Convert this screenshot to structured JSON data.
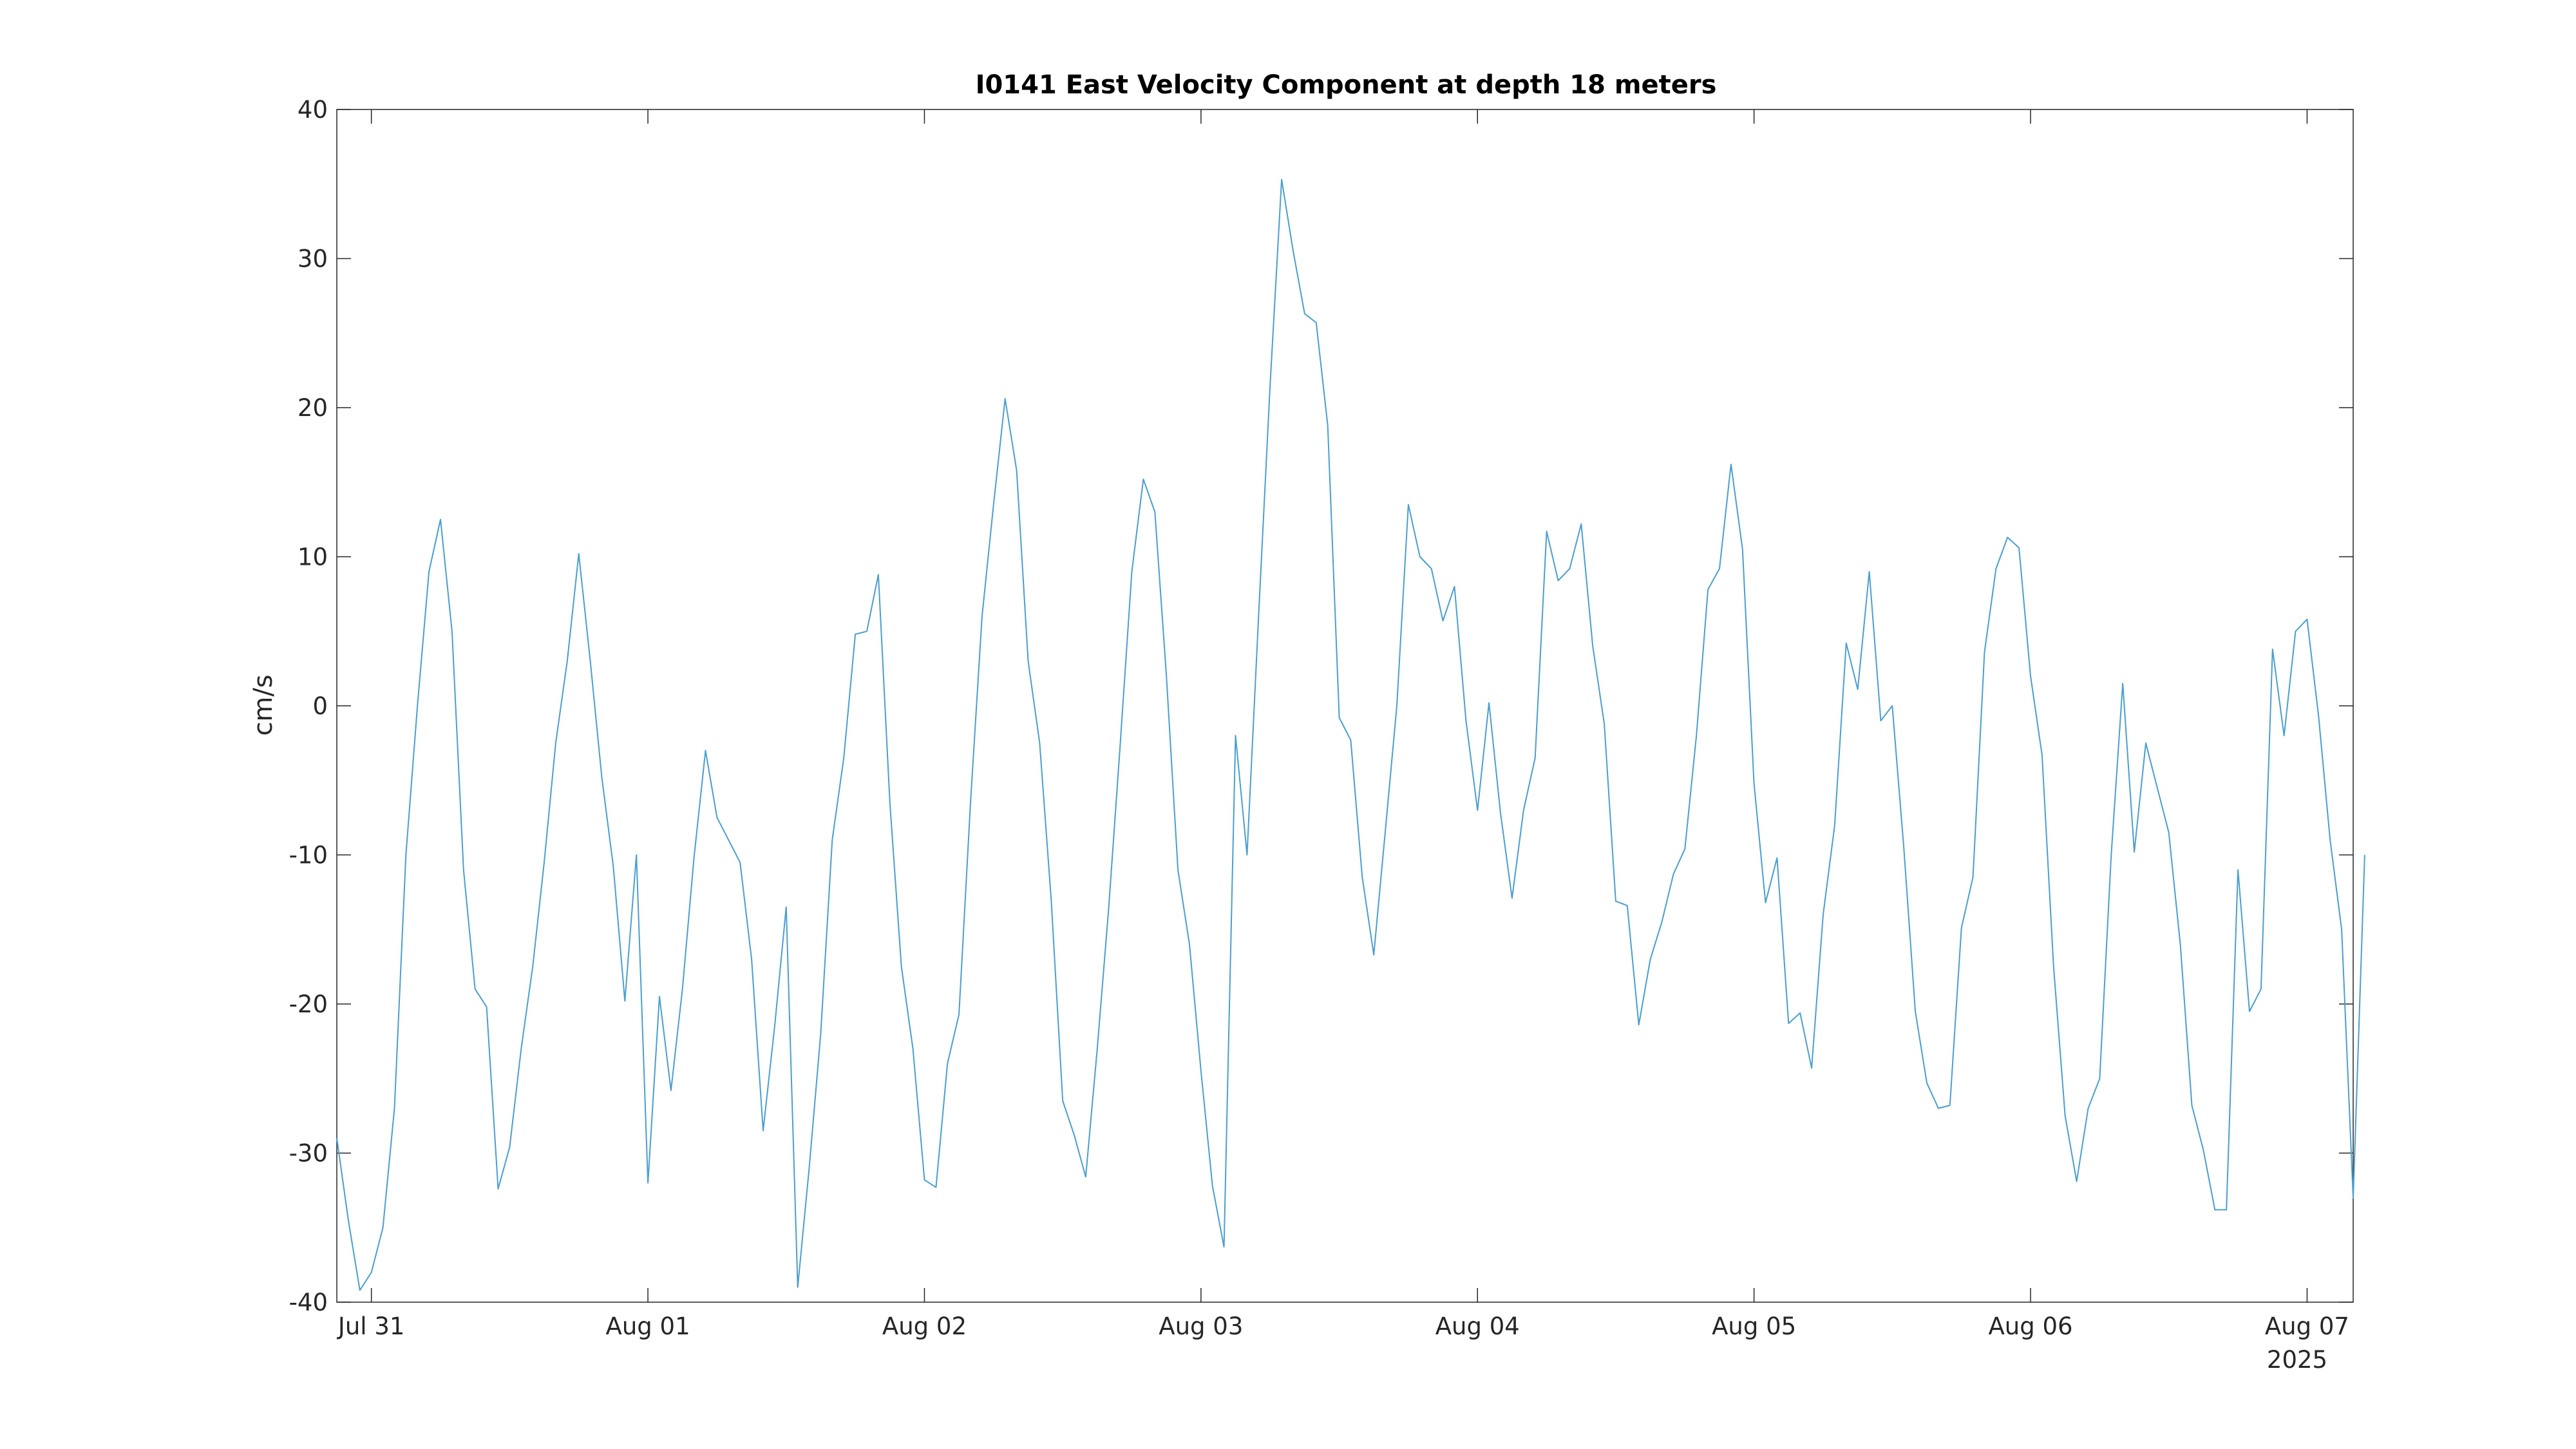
{
  "chart_data": {
    "type": "line",
    "title": "I0141 East Velocity Component at depth 18 meters",
    "xlabel": "",
    "ylabel": "cm/s",
    "ylim": [
      -40,
      40
    ],
    "xlim": [
      "2025-07-30 21:00",
      "2025-08-07 04:00"
    ],
    "yticks": [
      40,
      30,
      20,
      10,
      0,
      -10,
      -20,
      -30,
      -40
    ],
    "ytick_labels": [
      "40",
      "30",
      "20",
      "10",
      "0",
      "-10",
      "-20",
      "-30",
      "-40"
    ],
    "xticks": [
      "2025-07-31 00:00",
      "2025-08-01 00:00",
      "2025-08-02 00:00",
      "2025-08-03 00:00",
      "2025-08-04 00:00",
      "2025-08-05 00:00",
      "2025-08-06 00:00",
      "2025-08-07 00:00"
    ],
    "xtick_labels": [
      "Jul 31",
      "Aug 01",
      "Aug 02",
      "Aug 03",
      "Aug 04",
      "Aug 05",
      "Aug 06",
      "Aug 07"
    ],
    "x_secondary_label": "2025",
    "grid": false,
    "line_color": "#4a9fd0",
    "series": [
      {
        "x_start": "2025-07-30 21:00",
        "x_step_hours": 1,
        "values": [
          -29,
          -34.5,
          -39.2,
          -38,
          -35,
          -27,
          -10,
          0,
          9,
          12.5,
          5,
          -11,
          -19,
          -20.2,
          -32.4,
          -29.6,
          -23,
          -17.5,
          -10.5,
          -2.5,
          3,
          10.2,
          3,
          -4.8,
          -10.8,
          -19.8,
          -10,
          -32,
          -19.5,
          -25.8,
          -19,
          -10.2,
          -3,
          -7.5,
          -9,
          -10.5,
          -17,
          -28.5,
          -21.5,
          -13.5,
          -39,
          -31,
          -22,
          -9,
          -3.5,
          4.8,
          5,
          8.8,
          -6.5,
          -17.5,
          -23,
          -31.8,
          -32.3,
          -24,
          -20.7,
          -6.5,
          6,
          13.5,
          20.6,
          15.8,
          3,
          -2.5,
          -13,
          -26.5,
          -28.8,
          -31.6,
          -23,
          -13.5,
          -2.5,
          9,
          15.2,
          13,
          2,
          -11,
          -16,
          -24.5,
          -32.2,
          -36.3,
          -2,
          -10,
          6,
          21.5,
          35.3,
          30.5,
          26.3,
          25.7,
          18.8,
          -0.8,
          -2.3,
          -11.5,
          -16.7,
          -8.4,
          0,
          13.5,
          10,
          9.2,
          5.7,
          8,
          -1,
          -7,
          0.2,
          -7.2,
          -12.9,
          -7,
          -3.5,
          11.7,
          8.4,
          9.2,
          12.2,
          4,
          -1.2,
          -13.1,
          -13.4,
          -21.4,
          -17,
          -14.5,
          -11.3,
          -9.6,
          -2,
          7.8,
          9.2,
          16.2,
          10.5,
          -5.2,
          -13.2,
          -10.2,
          -21.3,
          -20.6,
          -24.3,
          -14,
          -8,
          4.2,
          1.1,
          9,
          -1,
          0,
          -9.5,
          -20.5,
          -25.3,
          -27,
          -26.8,
          -14.9,
          -11.5,
          3.6,
          9.2,
          11.3,
          10.6,
          2,
          -3.3,
          -17.5,
          -27.5,
          -31.9,
          -27,
          -25,
          -10,
          1.5,
          -9.8,
          -2.5,
          -5.5,
          -8.5,
          -16,
          -26.8,
          -29.8,
          -33.8,
          -33.8,
          -11,
          -20.5,
          -19,
          3.8,
          -2,
          5,
          5.8,
          -0.7,
          -9,
          -15,
          -33,
          -10
        ]
      }
    ]
  }
}
